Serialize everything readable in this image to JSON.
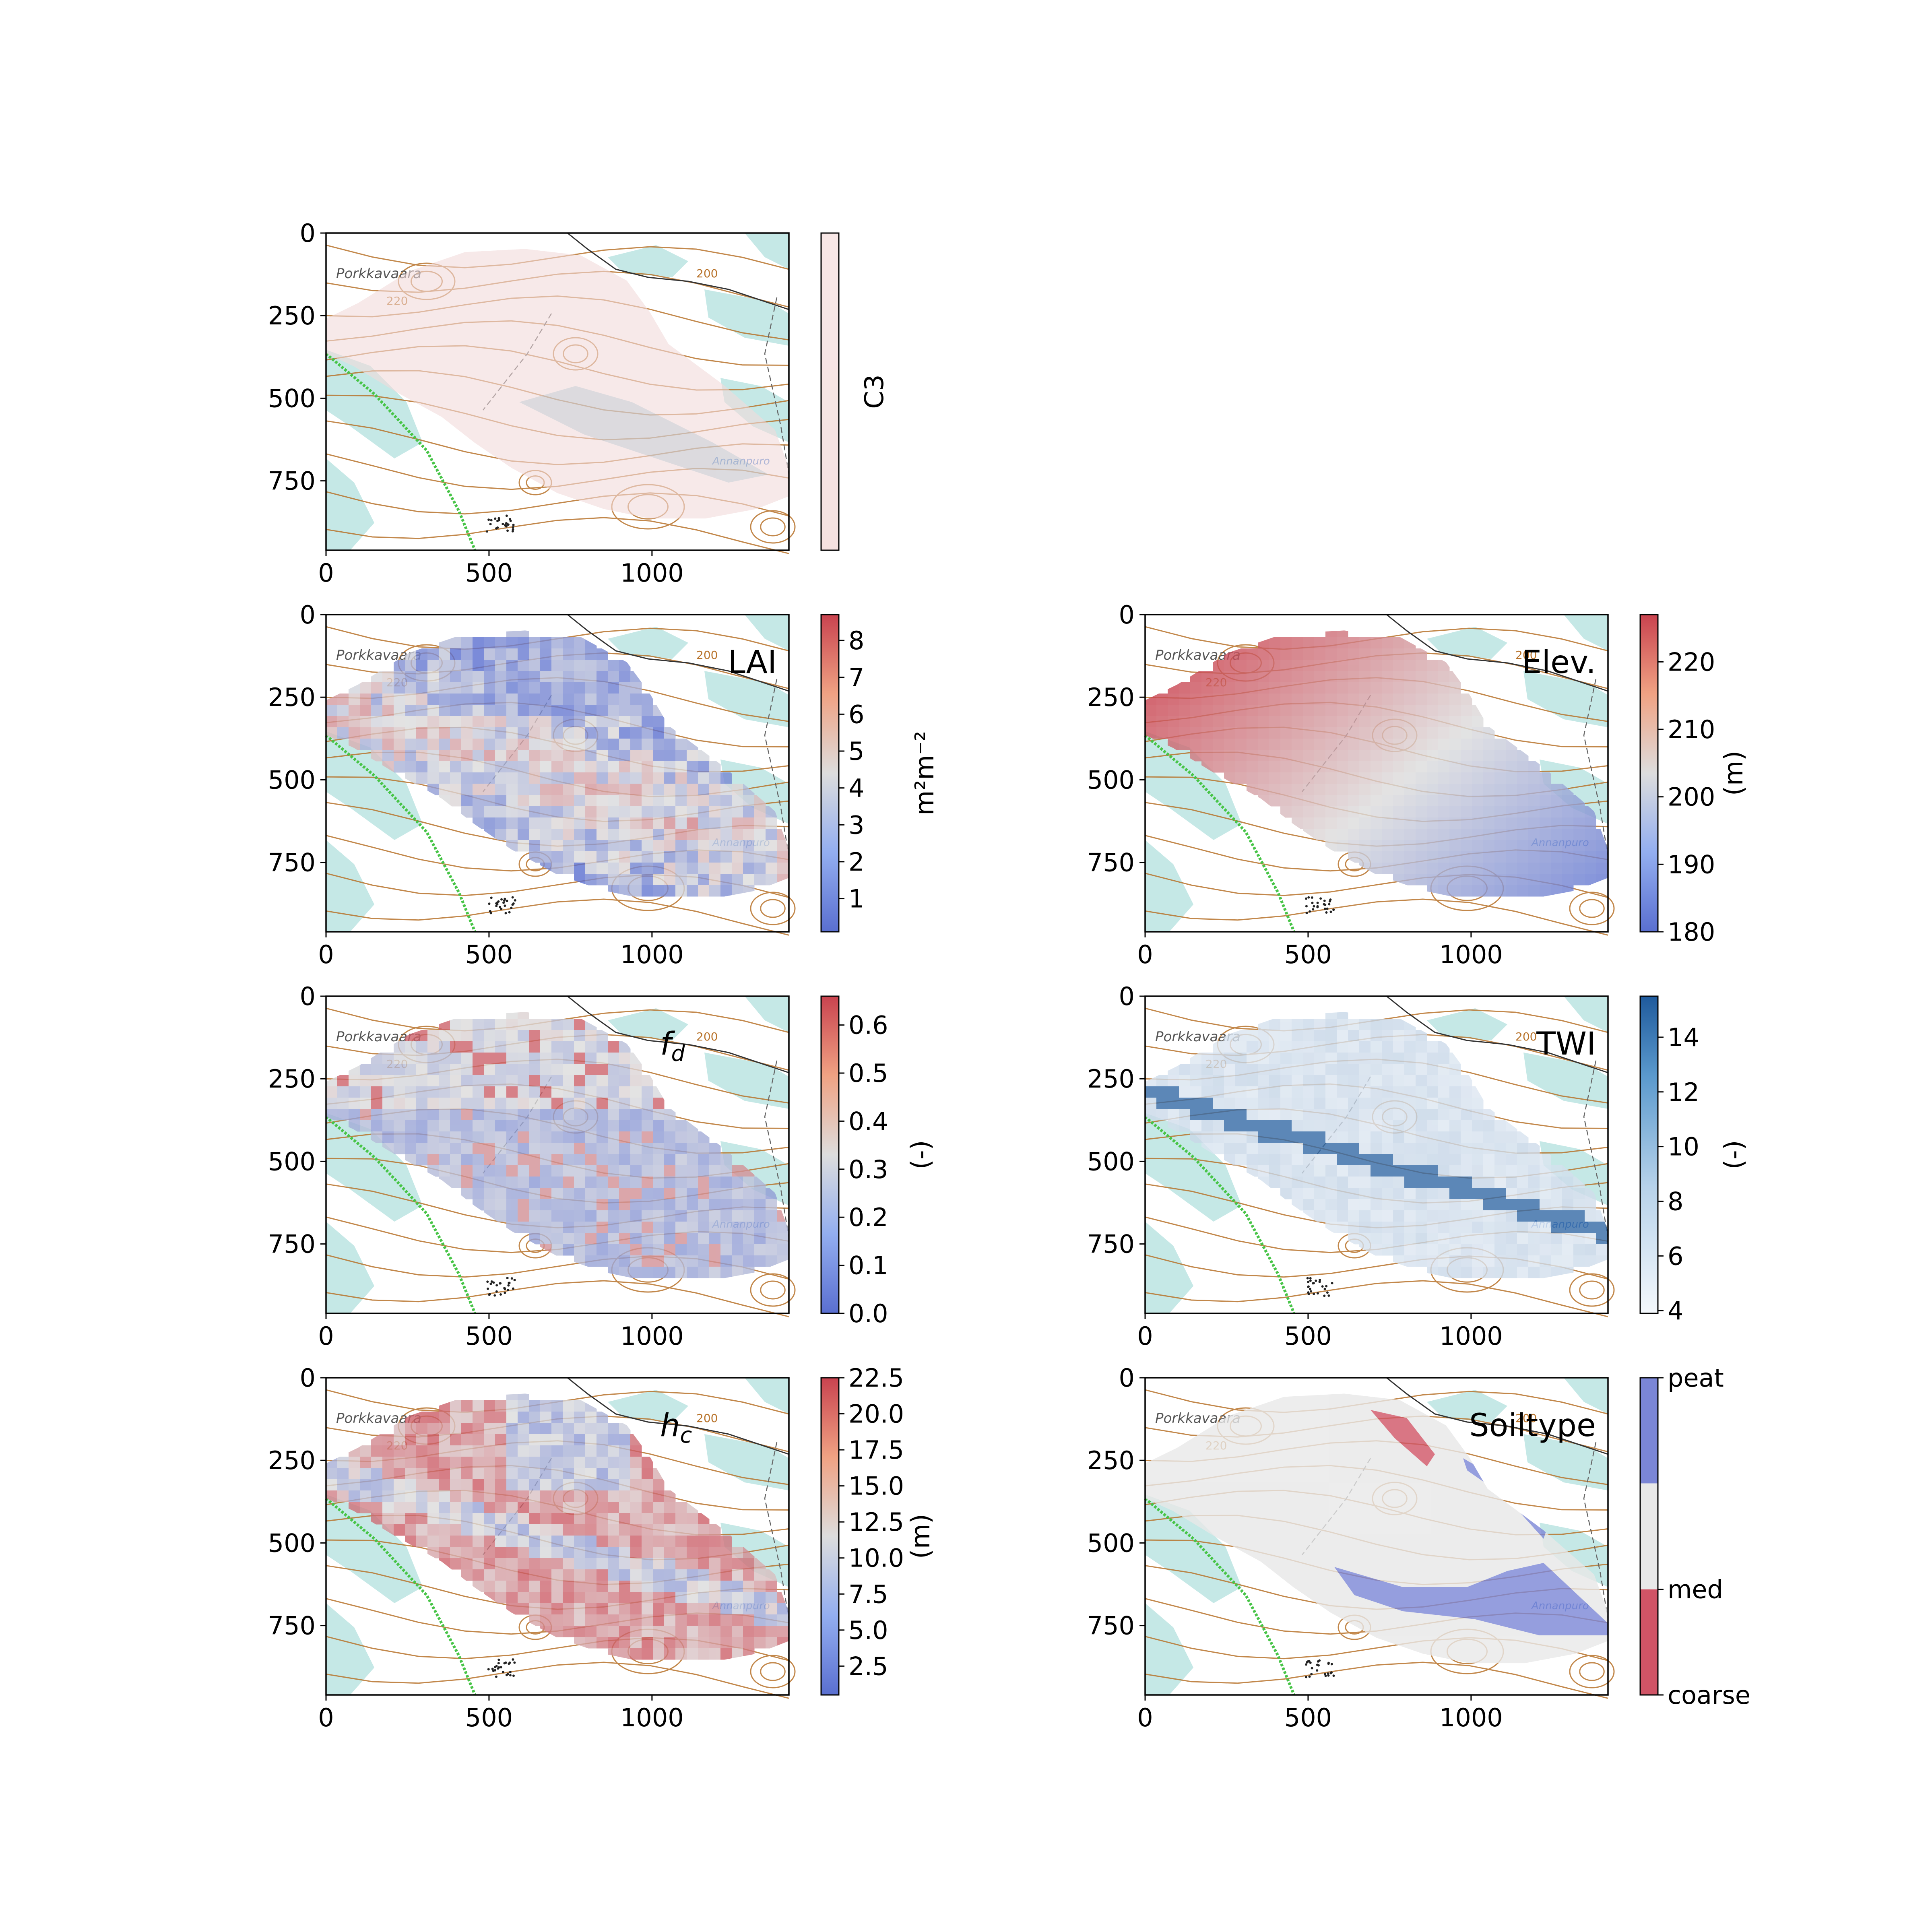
{
  "colors": {
    "coolwarm_low": "#5a6fd0",
    "coolwarm_mid": "#dddddd",
    "coolwarm_high": "#c9434f",
    "blues_low": "#f4f8fc",
    "blues_high": "#1f5a9c",
    "soil_peat": "#7b86d6",
    "soil_med": "#e8e8e8",
    "soil_coarse": "#d05466",
    "map_contour": "#b8732b",
    "map_water": "#bfe5e3",
    "map_road": "#47c447"
  },
  "map": {
    "place_label": "Porkkavaara",
    "contour_label_a": "220",
    "contour_label_b": "200",
    "stream_label": "Annanpuro"
  },
  "chart_data": [
    {
      "id": "c3",
      "type": "heatmap",
      "title": "",
      "panel_label": "",
      "colorbar_label": "C3",
      "colorbar_type": "single",
      "xlim": [
        0,
        1420
      ],
      "ylim": [
        960,
        0
      ],
      "xticks": [
        "0",
        "500",
        "1000"
      ],
      "xtick_values": [
        0,
        500,
        1000
      ],
      "yticks": [
        "0",
        "250",
        "500",
        "750"
      ],
      "ytick_values": [
        0,
        250,
        500,
        750
      ],
      "cbar_ticks": [],
      "cbar_range": [
        0,
        1
      ]
    },
    {
      "id": "lai",
      "type": "heatmap",
      "title": "",
      "panel_label": "LAI",
      "colorbar_label": "m²m⁻²",
      "colorbar_type": "coolwarm",
      "xlim": [
        0,
        1420
      ],
      "ylim": [
        960,
        0
      ],
      "xticks": [
        "0",
        "500",
        "1000"
      ],
      "xtick_values": [
        0,
        500,
        1000
      ],
      "yticks": [
        "0",
        "250",
        "500",
        "750"
      ],
      "ytick_values": [
        0,
        250,
        500,
        750
      ],
      "cbar_ticks": [
        "1",
        "2",
        "3",
        "4",
        "5",
        "6",
        "7",
        "8"
      ],
      "cbar_tick_values": [
        1,
        2,
        3,
        4,
        5,
        6,
        7,
        8
      ],
      "cbar_range": [
        0.1,
        8.7
      ]
    },
    {
      "id": "elev",
      "type": "heatmap",
      "title": "",
      "panel_label": "Elev.",
      "colorbar_label": "(m)",
      "colorbar_type": "coolwarm",
      "xlim": [
        0,
        1420
      ],
      "ylim": [
        960,
        0
      ],
      "xticks": [
        "0",
        "500",
        "1000"
      ],
      "xtick_values": [
        0,
        500,
        1000
      ],
      "yticks": [
        "0",
        "250",
        "500",
        "750"
      ],
      "ytick_values": [
        0,
        250,
        500,
        750
      ],
      "cbar_ticks": [
        "180",
        "190",
        "200",
        "210",
        "220"
      ],
      "cbar_tick_values": [
        180,
        190,
        200,
        210,
        220
      ],
      "cbar_range": [
        180,
        227
      ]
    },
    {
      "id": "fd",
      "type": "heatmap",
      "title": "",
      "panel_label": "f",
      "panel_label_sub": "d",
      "colorbar_label": "(-)",
      "colorbar_type": "coolwarm",
      "xlim": [
        0,
        1420
      ],
      "ylim": [
        960,
        0
      ],
      "xticks": [
        "0",
        "500",
        "1000"
      ],
      "xtick_values": [
        0,
        500,
        1000
      ],
      "yticks": [
        "0",
        "250",
        "500",
        "750"
      ],
      "ytick_values": [
        0,
        250,
        500,
        750
      ],
      "cbar_ticks": [
        "0.0",
        "0.1",
        "0.2",
        "0.3",
        "0.4",
        "0.5",
        "0.6"
      ],
      "cbar_tick_values": [
        0.0,
        0.1,
        0.2,
        0.3,
        0.4,
        0.5,
        0.6
      ],
      "cbar_range": [
        0.0,
        0.66
      ]
    },
    {
      "id": "twi",
      "type": "heatmap",
      "title": "",
      "panel_label": "TWI",
      "colorbar_label": "(-)",
      "colorbar_type": "blues",
      "xlim": [
        0,
        1420
      ],
      "ylim": [
        960,
        0
      ],
      "xticks": [
        "0",
        "500",
        "1000"
      ],
      "xtick_values": [
        0,
        500,
        1000
      ],
      "yticks": [
        "0",
        "250",
        "500",
        "750"
      ],
      "ytick_values": [
        0,
        250,
        500,
        750
      ],
      "cbar_ticks": [
        "4",
        "6",
        "8",
        "10",
        "12",
        "14"
      ],
      "cbar_tick_values": [
        4,
        6,
        8,
        10,
        12,
        14
      ],
      "cbar_range": [
        3.9,
        15.5
      ]
    },
    {
      "id": "hc",
      "type": "heatmap",
      "title": "",
      "panel_label": "h",
      "panel_label_sub": "c",
      "colorbar_label": "(m)",
      "colorbar_type": "coolwarm",
      "xlim": [
        0,
        1420
      ],
      "ylim": [
        960,
        0
      ],
      "xticks": [
        "0",
        "500",
        "1000"
      ],
      "xtick_values": [
        0,
        500,
        1000
      ],
      "yticks": [
        "0",
        "250",
        "500",
        "750"
      ],
      "ytick_values": [
        0,
        250,
        500,
        750
      ],
      "cbar_ticks": [
        "2.5",
        "5.0",
        "7.5",
        "10.0",
        "12.5",
        "15.0",
        "17.5",
        "20.0",
        "22.5"
      ],
      "cbar_tick_values": [
        2.5,
        5.0,
        7.5,
        10.0,
        12.5,
        15.0,
        17.5,
        20.0,
        22.5
      ],
      "cbar_range": [
        0.5,
        22.5
      ]
    },
    {
      "id": "soil",
      "type": "heatmap",
      "title": "",
      "panel_label": "Soiltype",
      "colorbar_label": "",
      "colorbar_type": "categorical",
      "xlim": [
        0,
        1420
      ],
      "ylim": [
        960,
        0
      ],
      "xticks": [
        "0",
        "500",
        "1000"
      ],
      "xtick_values": [
        0,
        500,
        1000
      ],
      "yticks": [
        "0",
        "250",
        "500",
        "750"
      ],
      "ytick_values": [
        0,
        250,
        500,
        750
      ],
      "categories": [
        "coarse",
        "med",
        "peat"
      ],
      "cbar_ticks": [
        "coarse",
        "med",
        "peat"
      ],
      "cbar_tick_values": [
        0,
        0.333,
        1.0
      ],
      "cbar_range": [
        0,
        1
      ]
    }
  ]
}
